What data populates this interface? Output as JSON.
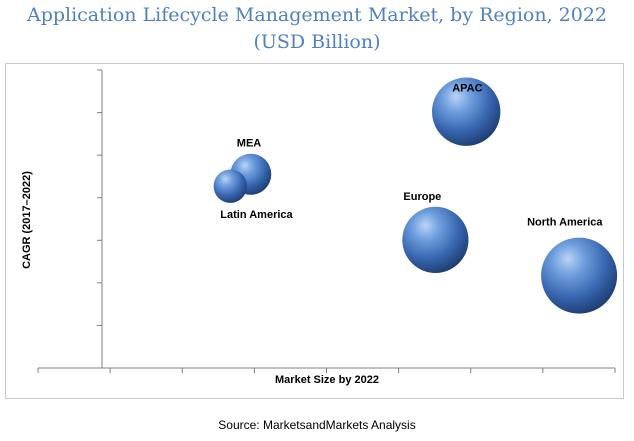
{
  "title": "Application Lifecycle Management Market, by Region, 2022 (USD Billion)",
  "source": "Source: MarketsandMarkets Analysis",
  "colors": {
    "title": "#4f81bd",
    "bubble": "#3d6fb8",
    "axis": "#7f7f7f"
  },
  "chart_data": {
    "type": "bubble",
    "xlabel": "Market Size by 2022",
    "ylabel": "CAGR (2017–2022)",
    "grid": false,
    "series": [
      {
        "name": "APAC",
        "x": 0.71,
        "y": 0.86,
        "size": 0.9
      },
      {
        "name": "MEA",
        "x": 0.29,
        "y": 0.65,
        "size": 0.54
      },
      {
        "name": "Latin America",
        "x": 0.25,
        "y": 0.61,
        "size": 0.44
      },
      {
        "name": "Europe",
        "x": 0.65,
        "y": 0.43,
        "size": 0.87
      },
      {
        "name": "North America",
        "x": 0.93,
        "y": 0.31,
        "size": 1.0
      }
    ]
  }
}
